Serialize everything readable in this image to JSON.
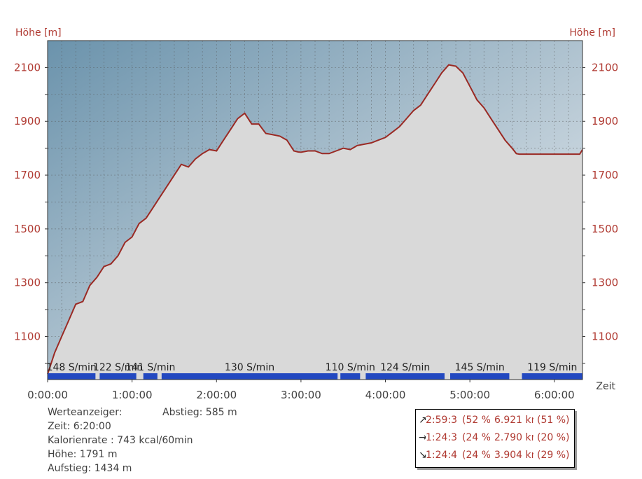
{
  "chart_data": {
    "type": "area",
    "ylabel_left": "Höhe [m]",
    "ylabel_right": "Höhe [m]",
    "xlabel": "Zeit",
    "ylim": [
      940,
      2200
    ],
    "yticks": [
      1100,
      1300,
      1500,
      1700,
      1900,
      2100
    ],
    "xlim_minutes": [
      0,
      380
    ],
    "xticks": [
      "0:00:00",
      "1:00:00",
      "2:00:00",
      "3:00:00",
      "4:00:00",
      "5:00:00",
      "6:00:00"
    ],
    "grid": true,
    "colors": {
      "line": "#9a2a24",
      "fill": "#d9d9d9",
      "cadence_bar": "#2248c0",
      "axis_text": "#b03a32"
    },
    "series": [
      {
        "x_minutes": [
          0,
          5,
          10,
          15,
          20,
          25,
          30,
          35,
          40,
          45,
          50,
          55,
          60,
          65,
          70,
          75,
          80,
          85,
          90,
          95,
          100,
          105,
          110,
          115,
          120,
          125,
          130,
          135,
          140,
          145,
          150,
          155,
          160,
          165,
          170,
          175,
          178,
          180,
          185,
          190,
          195,
          200,
          205,
          210,
          215,
          220,
          225,
          230,
          235,
          240,
          245,
          250,
          255,
          260,
          265,
          270,
          275,
          280,
          285,
          290,
          295,
          300,
          305,
          310,
          315,
          320,
          325,
          330,
          333,
          335,
          340,
          345,
          350,
          355,
          360,
          365,
          370,
          375,
          378,
          380
        ],
        "y": [
          960,
          1040,
          1100,
          1160,
          1220,
          1230,
          1290,
          1320,
          1360,
          1370,
          1400,
          1450,
          1470,
          1520,
          1540,
          1580,
          1620,
          1660,
          1700,
          1740,
          1730,
          1760,
          1780,
          1795,
          1790,
          1830,
          1870,
          1910,
          1930,
          1890,
          1890,
          1855,
          1850,
          1845,
          1830,
          1790,
          1786,
          1785,
          1790,
          1790,
          1780,
          1780,
          1790,
          1800,
          1795,
          1810,
          1815,
          1820,
          1830,
          1840,
          1860,
          1880,
          1910,
          1940,
          1960,
          2000,
          2040,
          2080,
          2110,
          2105,
          2080,
          2030,
          1980,
          1950,
          1910,
          1870,
          1830,
          1800,
          1780,
          1778,
          1778,
          1778,
          1778,
          1778,
          1778,
          1778,
          1778,
          1778,
          1778,
          1795
        ]
      }
    ],
    "cadence_segments": [
      {
        "label": "148 S/min",
        "start_minutes": 0,
        "end_minutes": 34
      },
      {
        "label": "122 S/min",
        "start_minutes": 37,
        "end_minutes": 63
      },
      {
        "label": "141 S/min",
        "start_minutes": 68,
        "end_minutes": 78
      },
      {
        "label": "130 S/min",
        "start_minutes": 81,
        "end_minutes": 206
      },
      {
        "label": "110 S/min",
        "start_minutes": 208,
        "end_minutes": 222
      },
      {
        "label": "124 S/min",
        "start_minutes": 226,
        "end_minutes": 282
      },
      {
        "label": "145 S/min",
        "start_minutes": 286,
        "end_minutes": 328
      },
      {
        "label": "119 S/min",
        "start_minutes": 337,
        "end_minutes": 380
      }
    ]
  },
  "info": {
    "werteanzeiger": "Werteanzeiger:",
    "zeit": "Zeit: 6:20:00",
    "kalorienrate": "Kalorienrate : 743 kcal/60min",
    "hoehe": "Höhe: 1791 m",
    "aufstieg": "Aufstieg: 1434 m",
    "abstieg": "Abstieg: 585 m"
  },
  "stats": [
    {
      "icon": "up-arrow-icon",
      "arrow": "↗",
      "time": "2:59:3(",
      "time_pct": "(52 %",
      "dist": "6.921 km",
      "dist_pct": "(51 %)"
    },
    {
      "icon": "flat-arrow-icon",
      "arrow": "→",
      "time": "1:24:3(",
      "time_pct": "(24 %",
      "dist": "2.790 km",
      "dist_pct": "(20 %)"
    },
    {
      "icon": "down-arrow-icon",
      "arrow": "↘",
      "time": "1:24:4!",
      "time_pct": "(24 %",
      "dist": "3.904 km",
      "dist_pct": "(29 %)"
    }
  ]
}
